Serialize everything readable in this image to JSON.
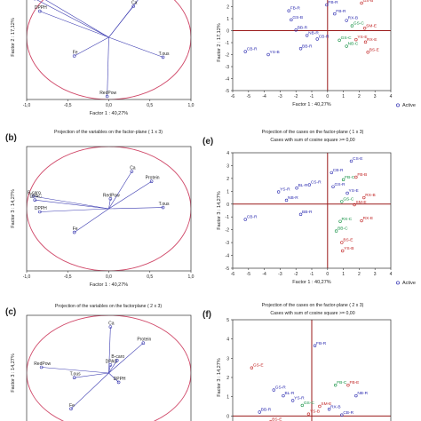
{
  "colors": {
    "circle": "#d04a6a",
    "axis": "#9a1a1a",
    "vector": "#3a3ab0",
    "blue": "#2a2ab0",
    "red": "#c02020",
    "green": "#109040",
    "dark": "#222222"
  },
  "chart_data": [
    {
      "id": "a",
      "type": "scatter",
      "kind": "variables",
      "panel_label": "",
      "title": "",
      "xlabel": "Factor 1 : 40,27%",
      "ylabel": "Factor 2 : 17,12%",
      "xlim": [
        -1.0,
        1.0
      ],
      "ylim": [
        -1.0,
        1.0
      ],
      "xticks": [
        "-1,0",
        "-0,5",
        "0,0",
        "0,5",
        "1,0"
      ],
      "yticks": [],
      "legend": "",
      "vectors": [
        {
          "label": "B-caro",
          "x": -0.92,
          "y": 0.72
        },
        {
          "label": "DPAC",
          "x": -0.9,
          "y": 0.62
        },
        {
          "label": "DPPH",
          "x": -0.84,
          "y": 0.42
        },
        {
          "label": "Protein",
          "x": 0.52,
          "y": 0.88
        },
        {
          "label": "Ca",
          "x": 0.3,
          "y": 0.5
        },
        {
          "label": "Fe",
          "x": -0.42,
          "y": -0.3
        },
        {
          "label": "T.ous",
          "x": 0.66,
          "y": -0.32
        },
        {
          "label": "RedPow",
          "x": -0.02,
          "y": -0.95
        }
      ]
    },
    {
      "id": "b",
      "type": "scatter",
      "kind": "variables",
      "panel_label": "(b)",
      "title": "Projection of the variables on the factor-plane ( 1 x 3)",
      "xlabel": "Factor 1 : 40,27%",
      "ylabel": "Factor 3 : 14,27%",
      "xlim": [
        -1.0,
        1.0
      ],
      "ylim": [
        -1.0,
        1.0
      ],
      "xticks": [
        "-1,0",
        "-0,5",
        "0,0",
        "0,5",
        "1,0"
      ],
      "yticks": [],
      "legend": "",
      "vectors": [
        {
          "label": "B-caro",
          "x": -0.92,
          "y": 0.2
        },
        {
          "label": "DPAC",
          "x": -0.9,
          "y": 0.14
        },
        {
          "label": "DPPH",
          "x": -0.84,
          "y": -0.05
        },
        {
          "label": "Ca",
          "x": 0.28,
          "y": 0.6
        },
        {
          "label": "Protein",
          "x": 0.52,
          "y": 0.44
        },
        {
          "label": "RedPow",
          "x": 0.02,
          "y": 0.16
        },
        {
          "label": "T.ous",
          "x": 0.66,
          "y": 0.02
        },
        {
          "label": "Fe",
          "x": -0.42,
          "y": -0.38
        }
      ]
    },
    {
      "id": "c",
      "type": "scatter",
      "kind": "variables",
      "panel_label": "(c)",
      "title": "Projection of the variables on the factorplane ( 2 x 3)",
      "xlabel": "",
      "ylabel": "Factor 3 : 14,27%",
      "xlim": [
        -1.0,
        1.0
      ],
      "ylim": [
        -1.0,
        1.0
      ],
      "xticks": [],
      "yticks": [],
      "legend": "",
      "vectors": [
        {
          "label": "Ca",
          "x": 0.02,
          "y": 0.8
        },
        {
          "label": "Protein",
          "x": 0.42,
          "y": 0.52
        },
        {
          "label": "B-caro",
          "x": 0.1,
          "y": 0.22
        },
        {
          "label": "DPAC",
          "x": 0.02,
          "y": 0.14
        },
        {
          "label": "RedPow",
          "x": -0.82,
          "y": 0.1
        },
        {
          "label": "T.ous",
          "x": -0.42,
          "y": -0.08
        },
        {
          "label": "DPPH",
          "x": 0.12,
          "y": -0.16
        },
        {
          "label": "Fe",
          "x": -0.46,
          "y": -0.62
        }
      ]
    },
    {
      "id": "d",
      "type": "scatter",
      "kind": "cases",
      "panel_label": "",
      "title": "",
      "subtitle": "",
      "xlabel": "Factor 1 : 40,27%",
      "ylabel": "Factor 2 : 17,12%",
      "xlim": [
        -6,
        4
      ],
      "ylim": [
        -5,
        3
      ],
      "xticks": [
        "-6",
        "-5",
        "-4",
        "-3",
        "-2",
        "-1",
        "0",
        "1",
        "2",
        "3",
        "4"
      ],
      "yticks": [
        "-5",
        "-4",
        "-3",
        "-2",
        "-1",
        "0",
        "1",
        "2"
      ],
      "legend": "Active",
      "points": [
        {
          "label": "GS-B",
          "x": 2.15,
          "y": 2.3,
          "c": "red"
        },
        {
          "label": "FB-R",
          "x": 0.45,
          "y": 1.4,
          "c": "blue"
        },
        {
          "label": "FB-R",
          "x": -0.05,
          "y": 2.15,
          "c": "blue"
        },
        {
          "label": "FB-R",
          "x": -2.45,
          "y": 1.65,
          "c": "blue"
        },
        {
          "label": "GS-B",
          "x": -2.3,
          "y": 0.9,
          "c": "blue"
        },
        {
          "label": "RX-B",
          "x": 1.2,
          "y": 0.85,
          "c": "blue"
        },
        {
          "label": "GS-C",
          "x": 1.55,
          "y": 0.4,
          "c": "green"
        },
        {
          "label": "SM-E",
          "x": 2.35,
          "y": 0.2,
          "c": "red"
        },
        {
          "label": "BB-R",
          "x": -2.0,
          "y": 0.05,
          "c": "blue"
        },
        {
          "label": "NB-R",
          "x": -1.3,
          "y": -0.4,
          "c": "blue"
        },
        {
          "label": "CB-R",
          "x": -0.65,
          "y": -0.7,
          "c": "blue"
        },
        {
          "label": "GS-C",
          "x": 0.75,
          "y": -0.8,
          "c": "green"
        },
        {
          "label": "YS-E",
          "x": 1.8,
          "y": -0.75,
          "c": "red"
        },
        {
          "label": "RX-E",
          "x": 2.4,
          "y": -0.95,
          "c": "red"
        },
        {
          "label": "BB-R",
          "x": -1.7,
          "y": -1.5,
          "c": "blue"
        },
        {
          "label": "CB-R",
          "x": -5.2,
          "y": -1.75,
          "c": "blue"
        },
        {
          "label": "YS-B",
          "x": -3.75,
          "y": -2.0,
          "c": "blue"
        },
        {
          "label": "BS-E",
          "x": 2.55,
          "y": -1.8,
          "c": "red"
        },
        {
          "label": "NB-C",
          "x": 1.2,
          "y": -1.3,
          "c": "green"
        }
      ]
    },
    {
      "id": "e",
      "type": "scatter",
      "kind": "cases",
      "panel_label": "(e)",
      "title": "Projection of the cases on the factor-plane ( 1 x 3)",
      "subtitle": "Cases with sum of cosine square >= 0,00",
      "xlabel": "Factor 1 : 40,27%",
      "ylabel": "Factor 3 : 14,27%",
      "xlim": [
        -6,
        4
      ],
      "ylim": [
        -5,
        4
      ],
      "xticks": [
        "-6",
        "-5",
        "-4",
        "-3",
        "-2",
        "-1",
        "0",
        "1",
        "2",
        "3",
        "4"
      ],
      "yticks": [
        "-5",
        "-4",
        "-3",
        "-2",
        "-1",
        "0",
        "1",
        "2",
        "3",
        "4"
      ],
      "legend": "Active",
      "points": [
        {
          "label": "CS-E",
          "x": 1.5,
          "y": 3.35,
          "c": "blue"
        },
        {
          "label": "CB-R",
          "x": 0.25,
          "y": 2.45,
          "c": "blue"
        },
        {
          "label": "FB-C",
          "x": 1.0,
          "y": 1.9,
          "c": "green"
        },
        {
          "label": "FB-B",
          "x": 1.8,
          "y": 2.1,
          "c": "red"
        },
        {
          "label": "CS-R",
          "x": -1.15,
          "y": 1.5,
          "c": "blue"
        },
        {
          "label": "BL-R",
          "x": -1.95,
          "y": 1.25,
          "c": "blue"
        },
        {
          "label": "GS-R",
          "x": 0.35,
          "y": 1.35,
          "c": "blue"
        },
        {
          "label": "YS-R",
          "x": -3.1,
          "y": 0.95,
          "c": "blue"
        },
        {
          "label": "YS-E",
          "x": 1.25,
          "y": 0.85,
          "c": "blue"
        },
        {
          "label": "RX-B",
          "x": 2.3,
          "y": 0.5,
          "c": "red"
        },
        {
          "label": "NB-R",
          "x": -2.6,
          "y": 0.3,
          "c": "blue"
        },
        {
          "label": "GS-C",
          "x": 0.9,
          "y": 0.2,
          "c": "green"
        },
        {
          "label": "SM-E",
          "x": 1.7,
          "y": -0.05,
          "c": "red"
        },
        {
          "label": "BB-R",
          "x": -1.7,
          "y": -0.8,
          "c": "blue"
        },
        {
          "label": "CB-R",
          "x": -5.2,
          "y": -1.2,
          "c": "blue"
        },
        {
          "label": "RX-C",
          "x": 0.8,
          "y": -1.35,
          "c": "green"
        },
        {
          "label": "RX-E",
          "x": 2.15,
          "y": -1.3,
          "c": "red"
        },
        {
          "label": "BB-C",
          "x": 0.55,
          "y": -2.1,
          "c": "green"
        },
        {
          "label": "BS-E",
          "x": 0.9,
          "y": -3.0,
          "c": "red"
        },
        {
          "label": "YS-B",
          "x": 0.95,
          "y": -3.65,
          "c": "red"
        }
      ]
    },
    {
      "id": "f",
      "type": "scatter",
      "kind": "cases",
      "panel_label": "(f)",
      "title": "Projection of the cases on the factor-plane ( 2 x 3)",
      "subtitle": "Cases with sum of cosine square >= 0,00",
      "xlabel": "",
      "ylabel": "Factor 3 : 14,27%",
      "xlim": [
        -5,
        5
      ],
      "ylim": [
        -1,
        5
      ],
      "xticks": [],
      "yticks": [
        "0",
        "1",
        "2",
        "3",
        "4",
        "5"
      ],
      "legend": "",
      "points": [
        {
          "label": "FB-R",
          "x": 0.2,
          "y": 3.65,
          "c": "blue"
        },
        {
          "label": "GS-E",
          "x": -3.8,
          "y": 2.5,
          "c": "red"
        },
        {
          "label": "FB-C",
          "x": 1.5,
          "y": 1.6,
          "c": "green"
        },
        {
          "label": "FB-E",
          "x": 2.3,
          "y": 1.6,
          "c": "red"
        },
        {
          "label": "GS-R",
          "x": -2.4,
          "y": 1.35,
          "c": "blue"
        },
        {
          "label": "BL-R",
          "x": -1.8,
          "y": 1.05,
          "c": "blue"
        },
        {
          "label": "NB-R",
          "x": 2.8,
          "y": 1.05,
          "c": "blue"
        },
        {
          "label": "YS-R",
          "x": -1.2,
          "y": 0.8,
          "c": "blue"
        },
        {
          "label": "GS-C",
          "x": -0.6,
          "y": 0.55,
          "c": "green"
        },
        {
          "label": "SM-E",
          "x": 0.5,
          "y": 0.5,
          "c": "red"
        },
        {
          "label": "RX-B",
          "x": 1.1,
          "y": 0.35,
          "c": "blue"
        },
        {
          "label": "BB-R",
          "x": -3.3,
          "y": 0.2,
          "c": "blue"
        },
        {
          "label": "YS-B",
          "x": -0.2,
          "y": 0.1,
          "c": "red"
        },
        {
          "label": "CB-R",
          "x": 1.9,
          "y": 0.05,
          "c": "blue"
        },
        {
          "label": "BS-E",
          "x": -2.6,
          "y": -0.3,
          "c": "red"
        }
      ]
    }
  ]
}
